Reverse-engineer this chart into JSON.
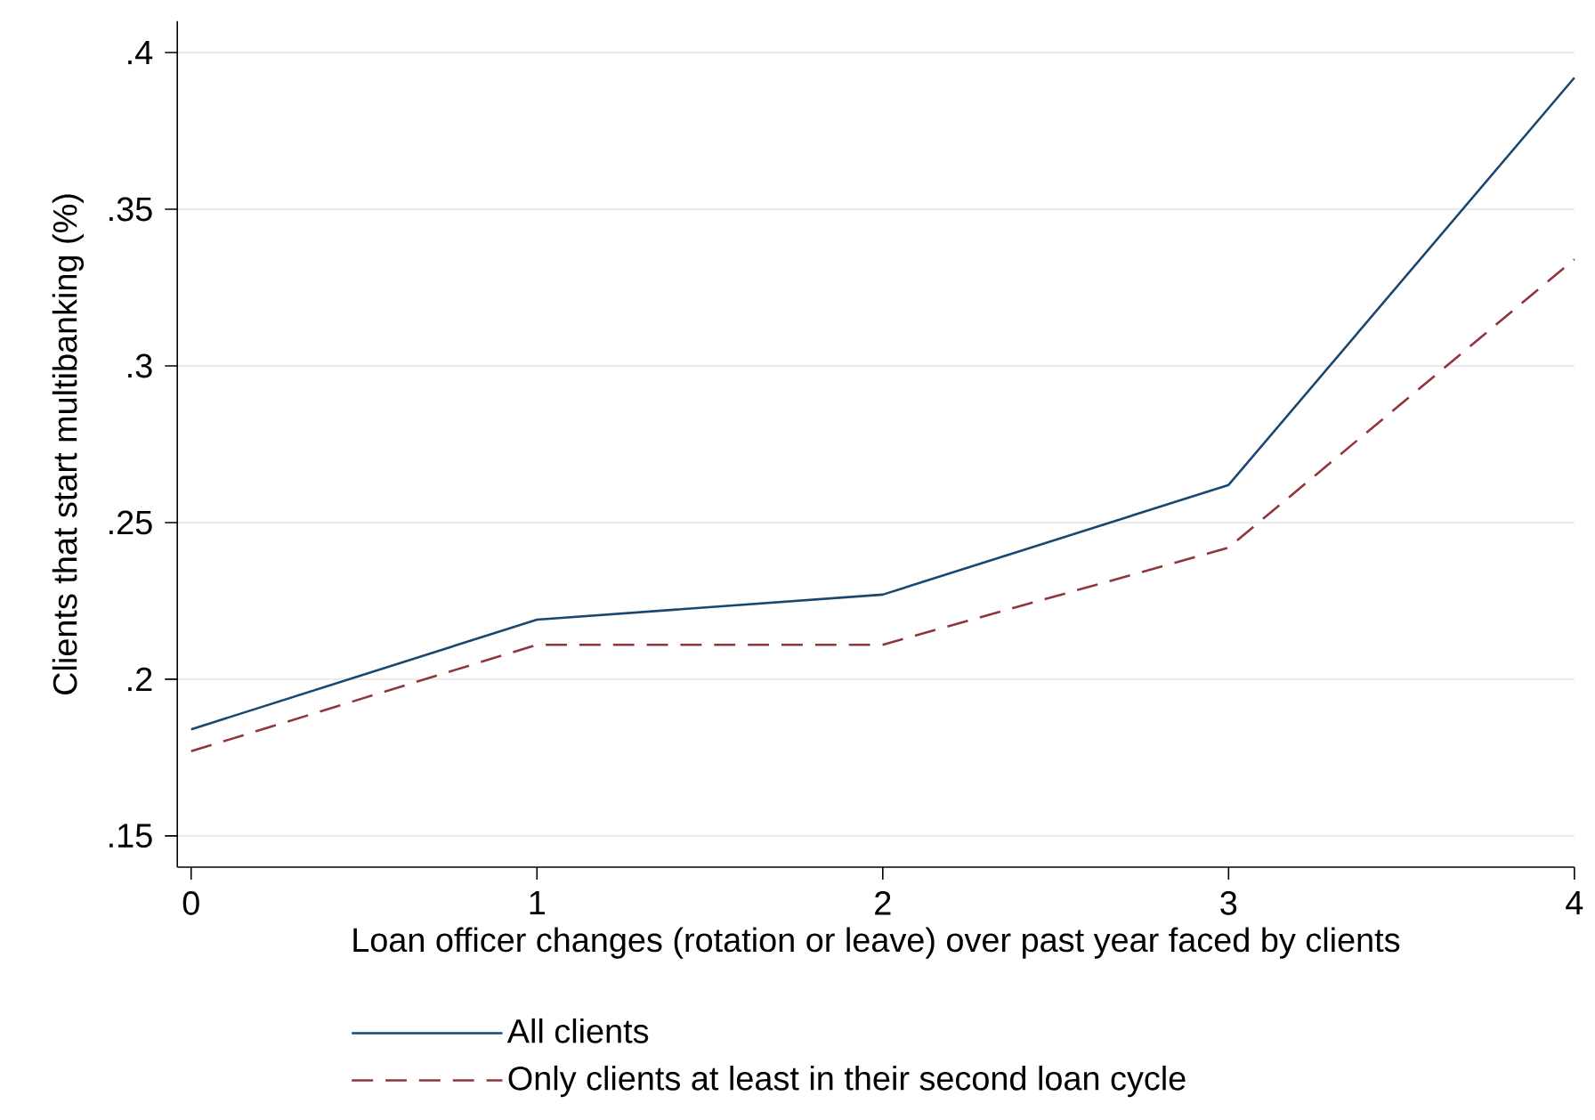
{
  "chart_data": {
    "type": "line",
    "xlabel": "Loan officer changes (rotation or leave) over past year faced by clients",
    "ylabel": "Clients that start multibanking (%)",
    "x": [
      0,
      1,
      2,
      3,
      4
    ],
    "series": [
      {
        "name": "All clients",
        "color": "#1a476f",
        "line_style": "solid",
        "values": [
          0.184,
          0.219,
          0.227,
          0.262,
          0.392
        ]
      },
      {
        "name": "Only clients at least in their second loan cycle",
        "color": "#90353b",
        "line_style": "dashed",
        "values": [
          0.177,
          0.211,
          0.211,
          0.242,
          0.334
        ]
      }
    ],
    "xlim": [
      -0.04,
      4
    ],
    "ylim": [
      0.14,
      0.41
    ],
    "xticks": [
      0,
      1,
      2,
      3,
      4
    ],
    "yticks": [
      {
        "value": 0.15,
        "label": ".15"
      },
      {
        "value": 0.2,
        "label": ".2"
      },
      {
        "value": 0.25,
        "label": ".25"
      },
      {
        "value": 0.3,
        "label": ".3"
      },
      {
        "value": 0.35,
        "label": ".35"
      },
      {
        "value": 0.4,
        "label": ".4"
      }
    ],
    "grid": "y",
    "legend": "bottom",
    "marker": "none"
  }
}
